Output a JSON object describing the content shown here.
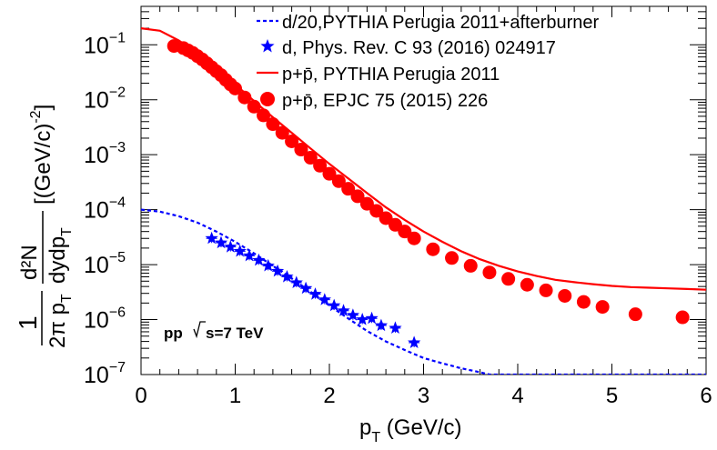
{
  "chart_data": {
    "type": "scatter",
    "title": "",
    "xlabel": "p_T (GeV/c)",
    "ylabel": "1/(2π p_T) d²N/(dy dp_T) [(GeV/c)^-2]",
    "xlim": [
      0,
      6
    ],
    "ylim": [
      1e-07,
      0.5
    ],
    "yscale": "log",
    "x_ticks": [
      0,
      1,
      2,
      3,
      4,
      5,
      6
    ],
    "x_tick_labels": [
      "0",
      "1",
      "2",
      "3",
      "4",
      "5",
      "6"
    ],
    "y_ticks": [
      1e-07,
      1e-06,
      1e-05,
      0.0001,
      0.001,
      0.01,
      0.1
    ],
    "y_tick_bases": [
      "10",
      "10",
      "10",
      "10",
      "10",
      "10",
      "10"
    ],
    "y_tick_exps": [
      "−7",
      "−6",
      "−5",
      "−4",
      "−3",
      "−2",
      "−1"
    ],
    "annotation": {
      "collision": "pp",
      "energy": "s=7 TeV"
    },
    "legend_position": "top-right",
    "ylabel_parts": {
      "one": "1",
      "two_pi_pt": "2π p",
      "t_sub": "T",
      "num": "d²N",
      "den": "dydp",
      "units": "[(GeV/c)",
      "units_exp": "-2",
      "units_close": "]"
    },
    "xlabel_parts": {
      "p": "p",
      "t_sub": "T",
      "units": " (GeV/c)"
    },
    "series": [
      {
        "name": "d/20,PYTHIA Perugia 2011+afterburner",
        "kind": "line",
        "style": "dashed",
        "color": "#0000ff",
        "x": [
          0,
          0.2,
          0.4,
          0.6,
          0.8,
          1.0,
          1.2,
          1.4,
          1.6,
          1.8,
          2.0,
          2.2,
          2.4,
          2.6,
          2.8,
          3.0,
          3.2,
          3.4,
          3.6,
          3.7,
          6.0
        ],
        "y": [
          0.0001,
          9.2e-05,
          7.6e-05,
          5.8e-05,
          4e-05,
          2.6e-05,
          1.6e-05,
          9.5e-06,
          5.6e-06,
          3.2e-06,
          1.8e-06,
          1.05e-06,
          6.2e-07,
          4e-07,
          2.8e-07,
          2e-07,
          1.6e-07,
          1.3e-07,
          1.1e-07,
          1e-07,
          1e-07
        ]
      },
      {
        "name": "d, Phys. Rev. C 93 (2016) 024917",
        "kind": "markers",
        "marker": "star",
        "color": "#0000ff",
        "x": [
          0.75,
          0.85,
          0.95,
          1.05,
          1.15,
          1.25,
          1.35,
          1.45,
          1.55,
          1.65,
          1.75,
          1.85,
          1.95,
          2.05,
          2.15,
          2.25,
          2.35,
          2.45,
          2.55,
          2.7,
          2.9
        ],
        "y": [
          3e-05,
          2.5e-05,
          2.1e-05,
          1.75e-05,
          1.45e-05,
          1.2e-05,
          9.5e-06,
          7.6e-06,
          6e-06,
          4.7e-06,
          3.7e-06,
          2.9e-06,
          2.3e-06,
          1.8e-06,
          1.45e-06,
          1.2e-06,
          1e-06,
          1.05e-06,
          7.8e-07,
          7e-07,
          3.8e-07
        ]
      },
      {
        "name": "p+p̄, PYTHIA Perugia 2011",
        "kind": "line",
        "style": "solid",
        "color": "#ff0000",
        "x": [
          0,
          0.2,
          0.4,
          0.6,
          0.8,
          1.0,
          1.2,
          1.4,
          1.6,
          1.8,
          2.0,
          2.2,
          2.4,
          2.6,
          2.8,
          3.0,
          3.2,
          3.4,
          3.6,
          3.8,
          4.0,
          4.2,
          4.4,
          4.6,
          4.8,
          5.0,
          5.2,
          5.4,
          5.6,
          5.8,
          6.0
        ],
        "y": [
          0.2,
          0.18,
          0.12,
          0.07,
          0.037,
          0.019,
          0.0095,
          0.0048,
          0.0025,
          0.0013,
          0.00068,
          0.00037,
          0.0002,
          0.00011,
          6.5e-05,
          4e-05,
          2.6e-05,
          1.75e-05,
          1.25e-05,
          9.5e-06,
          7.5e-06,
          6.2e-06,
          5.3e-06,
          4.8e-06,
          4.4e-06,
          4.1e-06,
          3.9e-06,
          3.8e-06,
          3.7e-06,
          3.6e-06,
          3.5e-06
        ]
      },
      {
        "name": "p+p̄, EPJC 75 (2015) 226",
        "kind": "markers",
        "marker": "circle",
        "color": "#ff0000",
        "x": [
          0.35,
          0.45,
          0.5,
          0.55,
          0.6,
          0.65,
          0.7,
          0.75,
          0.8,
          0.85,
          0.9,
          0.95,
          1.0,
          1.1,
          1.2,
          1.3,
          1.4,
          1.5,
          1.6,
          1.7,
          1.8,
          1.9,
          2.0,
          2.1,
          2.2,
          2.3,
          2.4,
          2.5,
          2.6,
          2.7,
          2.8,
          2.9,
          3.1,
          3.3,
          3.5,
          3.7,
          3.9,
          4.1,
          4.3,
          4.5,
          4.7,
          4.9,
          5.25,
          5.75
        ],
        "y": [
          0.095,
          0.087,
          0.079,
          0.071,
          0.062,
          0.054,
          0.046,
          0.039,
          0.033,
          0.028,
          0.023,
          0.019,
          0.016,
          0.011,
          0.0075,
          0.0052,
          0.0036,
          0.0025,
          0.00175,
          0.00124,
          0.00088,
          0.00063,
          0.00045,
          0.00033,
          0.00024,
          0.000175,
          0.000128,
          9.5e-05,
          7e-05,
          5.3e-05,
          4e-05,
          3e-05,
          1.9e-05,
          1.32e-05,
          9.5e-06,
          7.2e-06,
          5.5e-06,
          4.3e-06,
          3.4e-06,
          2.7e-06,
          2.1e-06,
          1.7e-06,
          1.25e-06,
          1.1e-06
        ]
      }
    ]
  }
}
